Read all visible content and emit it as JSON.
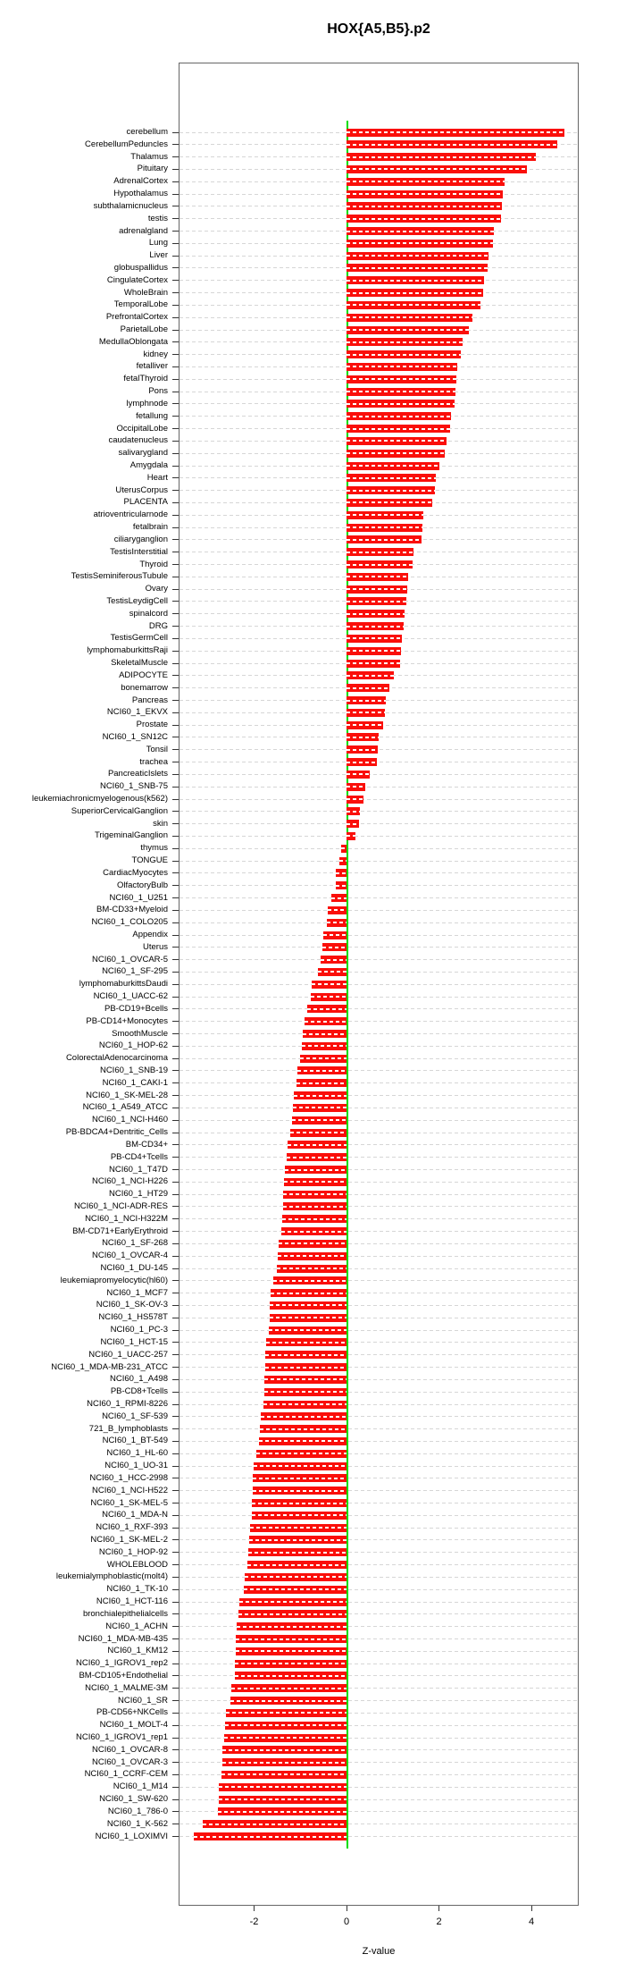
{
  "title": "HOX{A5,B5}.p2",
  "chart_data": {
    "type": "bar",
    "orientation": "horizontal",
    "title": "HOX{A5,B5}.p2",
    "xlabel": "Z-value",
    "ylabel": "",
    "xticks": [
      -2,
      0,
      2,
      4
    ],
    "xlim": [
      -3.63,
      5.03
    ],
    "grid": "dashed horizontal per-row",
    "bar_color": "#fa0f0a",
    "zero_line_color": "#00dd00",
    "grid_color": "#d6d6d6",
    "categories": [
      "cerebellum",
      "CerebellumPeduncles",
      "Thalamus",
      "Pituitary",
      "AdrenalCortex",
      "Hypothalamus",
      "subthalamicnucleus",
      "testis",
      "adrenalgland",
      "Lung",
      "Liver",
      "globuspallidus",
      "CingulateCortex",
      "WholeBrain",
      "TemporalLobe",
      "PrefrontalCortex",
      "ParietalLobe",
      "MedullaOblongata",
      "kidney",
      "fetalliver",
      "fetalThyroid",
      "Pons",
      "lymphnode",
      "fetallung",
      "OccipitalLobe",
      "caudatenucleus",
      "salivarygland",
      "Amygdala",
      "Heart",
      "UterusCorpus",
      "PLACENTA",
      "atrioventricularnode",
      "fetalbrain",
      "ciliaryganglion",
      "TestisInterstitial",
      "Thyroid",
      "TestisSeminiferousTubule",
      "Ovary",
      "TestisLeydigCell",
      "spinalcord",
      "DRG",
      "TestisGermCell",
      "lymphomaburkittsRaji",
      "SkeletalMuscle",
      "ADIPOCYTE",
      "bonemarrow",
      "Pancreas",
      "NCI60_1_EKVX",
      "Prostate",
      "NCI60_1_SN12C",
      "Tonsil",
      "trachea",
      "PancreaticIslets",
      "NCI60_1_SNB-75",
      "leukemiachronicmyelogenous(k562)",
      "SuperiorCervicalGanglion",
      "skin",
      "TrigeminalGanglion",
      "thymus",
      "TONGUE",
      "CardiacMyocytes",
      "OlfactoryBulb",
      "NCI60_1_U251",
      "BM-CD33+Myeloid",
      "NCI60_1_COLO205",
      "Appendix",
      "Uterus",
      "NCI60_1_OVCAR-5",
      "NCI60_1_SF-295",
      "lymphomaburkittsDaudi",
      "NCI60_1_UACC-62",
      "PB-CD19+Bcells",
      "PB-CD14+Monocytes",
      "SmoothMuscle",
      "NCI60_1_HOP-62",
      "ColorectalAdenocarcinoma",
      "NCI60_1_SNB-19",
      "NCI60_1_CAKI-1",
      "NCI60_1_SK-MEL-28",
      "NCI60_1_A549_ATCC",
      "NCI60_1_NCI-H460",
      "PB-BDCA4+Dentritic_Cells",
      "BM-CD34+",
      "PB-CD4+Tcells",
      "NCI60_1_T47D",
      "NCI60_1_NCI-H226",
      "NCI60_1_HT29",
      "NCI60_1_NCI-ADR-RES",
      "NCI60_1_NCI-H322M",
      "BM-CD71+EarlyErythroid",
      "NCI60_1_SF-268",
      "NCI60_1_OVCAR-4",
      "NCI60_1_DU-145",
      "leukemiapromyelocytic(hl60)",
      "NCI60_1_MCF7",
      "NCI60_1_SK-OV-3",
      "NCI60_1_HS578T",
      "NCI60_1_PC-3",
      "NCI60_1_HCT-15",
      "NCI60_1_UACC-257",
      "NCI60_1_MDA-MB-231_ATCC",
      "NCI60_1_A498",
      "PB-CD8+Tcells",
      "NCI60_1_RPMI-8226",
      "NCI60_1_SF-539",
      "721_B_lymphoblasts",
      "NCI60_1_BT-549",
      "NCI60_1_HL-60",
      "NCI60_1_UO-31",
      "NCI60_1_HCC-2998",
      "NCI60_1_NCI-H522",
      "NCI60_1_SK-MEL-5",
      "NCI60_1_MDA-N",
      "NCI60_1_RXF-393",
      "NCI60_1_SK-MEL-2",
      "NCI60_1_HOP-92",
      "WHOLEBLOOD",
      "leukemialymphoblastic(molt4)",
      "NCI60_1_TK-10",
      "NCI60_1_HCT-116",
      "bronchialepithelialcells",
      "NCI60_1_ACHN",
      "NCI60_1_MDA-MB-435",
      "NCI60_1_KM12",
      "NCI60_1_IGROV1_rep2",
      "BM-CD105+Endothelial",
      "NCI60_1_MALME-3M",
      "NCI60_1_SR",
      "PB-CD56+NKCells",
      "NCI60_1_MOLT-4",
      "NCI60_1_IGROV1_rep1",
      "NCI60_1_OVCAR-8",
      "NCI60_1_OVCAR-3",
      "NCI60_1_CCRF-CEM",
      "NCI60_1_M14",
      "NCI60_1_SW-620",
      "NCI60_1_786-0",
      "NCI60_1_K-562",
      "NCI60_1_LOXIMVI"
    ],
    "values": [
      4.72,
      4.56,
      4.1,
      3.91,
      3.42,
      3.38,
      3.36,
      3.35,
      3.19,
      3.17,
      3.08,
      3.06,
      2.97,
      2.95,
      2.9,
      2.73,
      2.65,
      2.52,
      2.48,
      2.4,
      2.38,
      2.36,
      2.34,
      2.27,
      2.25,
      2.17,
      2.12,
      2.01,
      1.93,
      1.91,
      1.85,
      1.66,
      1.65,
      1.63,
      1.45,
      1.43,
      1.34,
      1.32,
      1.3,
      1.26,
      1.23,
      1.2,
      1.17,
      1.15,
      1.02,
      0.92,
      0.85,
      0.83,
      0.8,
      0.7,
      0.68,
      0.66,
      0.51,
      0.41,
      0.36,
      0.29,
      0.28,
      0.2,
      -0.11,
      -0.15,
      -0.23,
      -0.24,
      -0.33,
      -0.41,
      -0.42,
      -0.5,
      -0.52,
      -0.57,
      -0.61,
      -0.75,
      -0.77,
      -0.85,
      -0.9,
      -0.95,
      -0.97,
      -1.01,
      -1.06,
      -1.08,
      -1.14,
      -1.15,
      -1.18,
      -1.21,
      -1.27,
      -1.3,
      -1.33,
      -1.36,
      -1.37,
      -1.38,
      -1.39,
      -1.41,
      -1.46,
      -1.49,
      -1.51,
      -1.59,
      -1.64,
      -1.66,
      -1.67,
      -1.68,
      -1.74,
      -1.75,
      -1.76,
      -1.77,
      -1.78,
      -1.79,
      -1.85,
      -1.87,
      -1.89,
      -1.95,
      -2.01,
      -2.02,
      -2.03,
      -2.04,
      -2.05,
      -2.08,
      -2.11,
      -2.13,
      -2.15,
      -2.2,
      -2.22,
      -2.32,
      -2.34,
      -2.37,
      -2.39,
      -2.4,
      -2.41,
      -2.42,
      -2.49,
      -2.52,
      -2.61,
      -2.62,
      -2.64,
      -2.68,
      -2.69,
      -2.71,
      -2.76,
      -2.77,
      -2.78,
      -3.12,
      -3.31
    ]
  }
}
